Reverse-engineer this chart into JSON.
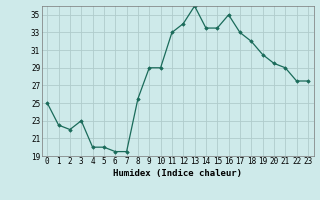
{
  "x": [
    0,
    1,
    2,
    3,
    4,
    5,
    6,
    7,
    8,
    9,
    10,
    11,
    12,
    13,
    14,
    15,
    16,
    17,
    18,
    19,
    20,
    21,
    22,
    23
  ],
  "y": [
    25,
    22.5,
    22,
    23,
    20,
    20,
    19.5,
    19.5,
    25.5,
    29,
    29,
    33,
    34,
    36,
    33.5,
    33.5,
    35,
    33,
    32,
    30.5,
    29.5,
    29,
    27.5,
    27.5
  ],
  "line_color": "#1a6b5a",
  "marker": "D",
  "marker_size": 1.8,
  "bg_color": "#ceeaea",
  "grid_color": "#b0cccc",
  "xlabel": "Humidex (Indice chaleur)",
  "xlim": [
    -0.5,
    23.5
  ],
  "ylim": [
    19,
    36
  ],
  "yticks": [
    19,
    21,
    23,
    25,
    27,
    29,
    31,
    33,
    35
  ],
  "xtick_labels": [
    "0",
    "1",
    "2",
    "3",
    "4",
    "5",
    "6",
    "7",
    "8",
    "9",
    "10",
    "11",
    "12",
    "13",
    "14",
    "15",
    "16",
    "17",
    "18",
    "19",
    "20",
    "21",
    "22",
    "23"
  ],
  "label_fontsize": 6.5,
  "tick_fontsize": 5.5
}
